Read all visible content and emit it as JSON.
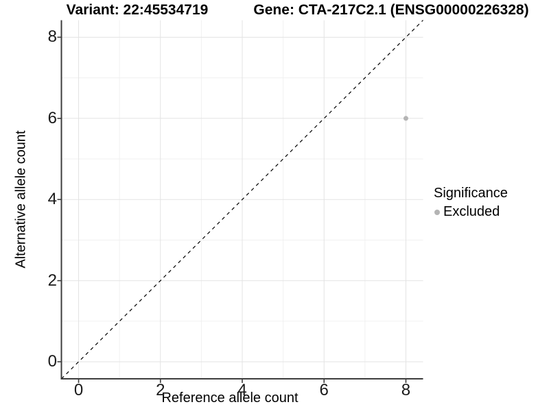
{
  "figure": {
    "title_left": "Variant: 22:45534719",
    "title_right": "Gene: CTA-217C2.1 (ENSG00000226328)"
  },
  "chart_data": {
    "type": "scatter",
    "title": "Variant: 22:45534719   Gene: CTA-217C2.1 (ENSG00000226328)",
    "xlabel": "Reference allele count",
    "ylabel": "Alternative allele count",
    "xlim": [
      -0.42,
      8.42
    ],
    "ylim": [
      -0.42,
      8.42
    ],
    "x_ticks": [
      0,
      2,
      4,
      6,
      8
    ],
    "y_ticks": [
      0,
      2,
      4,
      6,
      8
    ],
    "x_minor_gridlines": [
      1,
      3,
      5,
      7
    ],
    "y_minor_gridlines": [
      1,
      3,
      5,
      7
    ],
    "grid": true,
    "series": [
      {
        "name": "Excluded",
        "color": "#b4b4b4",
        "points": [
          {
            "x": 8,
            "y": 6
          }
        ]
      }
    ],
    "reference_line": {
      "type": "identity",
      "style": "dashed",
      "color": "#000000"
    },
    "legend": {
      "title": "Significance",
      "position": "right",
      "items": [
        {
          "label": "Excluded",
          "color": "#b4b4b4",
          "marker": "circle"
        }
      ]
    }
  },
  "colors": {
    "background": "#ffffff",
    "grid_major": "#e3e3e3",
    "grid_minor": "#f0f0f0",
    "axis_line": "#3c3c3c",
    "tick_mark": "#3c3c3c",
    "point": "#b4b4b4",
    "dashed_line": "#000000",
    "tick_text": "#1a1a1a"
  }
}
